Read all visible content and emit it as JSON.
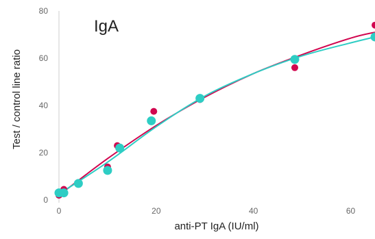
{
  "chart_data": {
    "type": "scatter",
    "title": "IgA",
    "xlabel": "anti-PT IgA (IU/ml)",
    "ylabel": "Test / control line ratio",
    "xlim": [
      0,
      65
    ],
    "ylim": [
      0,
      80
    ],
    "x_ticks": [
      "0",
      "20",
      "40",
      "60"
    ],
    "y_ticks": [
      "0",
      "20",
      "40",
      "60",
      "80"
    ],
    "grid": false,
    "series": [
      {
        "color": "#d1064f",
        "points": [
          {
            "x": 0,
            "y": 2
          },
          {
            "x": 1,
            "y": 4.5
          },
          {
            "x": 4,
            "y": 7
          },
          {
            "x": 10,
            "y": 14
          },
          {
            "x": 12,
            "y": 23
          },
          {
            "x": 19.5,
            "y": 37.5
          },
          {
            "x": 29,
            "y": 42.5
          },
          {
            "x": 48.5,
            "y": 56
          },
          {
            "x": 65,
            "y": 74
          }
        ],
        "fit_curve": [
          {
            "x": 0,
            "y": 2
          },
          {
            "x": 10,
            "y": 17.5
          },
          {
            "x": 20,
            "y": 31.5
          },
          {
            "x": 30,
            "y": 43.5
          },
          {
            "x": 40,
            "y": 53.5
          },
          {
            "x": 50,
            "y": 61.5
          },
          {
            "x": 60,
            "y": 68.5
          },
          {
            "x": 65,
            "y": 71
          }
        ]
      },
      {
        "color": "#2ecdc4",
        "points": [
          {
            "x": 0,
            "y": 3
          },
          {
            "x": 1,
            "y": 3
          },
          {
            "x": 4,
            "y": 7
          },
          {
            "x": 10,
            "y": 12.5
          },
          {
            "x": 12.5,
            "y": 22
          },
          {
            "x": 19,
            "y": 33.5
          },
          {
            "x": 29,
            "y": 43
          },
          {
            "x": 48.5,
            "y": 59.5
          },
          {
            "x": 65,
            "y": 69
          }
        ],
        "fit_curve": [
          {
            "x": 0,
            "y": 2.5
          },
          {
            "x": 10,
            "y": 16
          },
          {
            "x": 20,
            "y": 31
          },
          {
            "x": 30,
            "y": 44
          },
          {
            "x": 40,
            "y": 53.5
          },
          {
            "x": 50,
            "y": 61
          },
          {
            "x": 60,
            "y": 66.5
          },
          {
            "x": 65,
            "y": 69
          }
        ]
      }
    ]
  }
}
